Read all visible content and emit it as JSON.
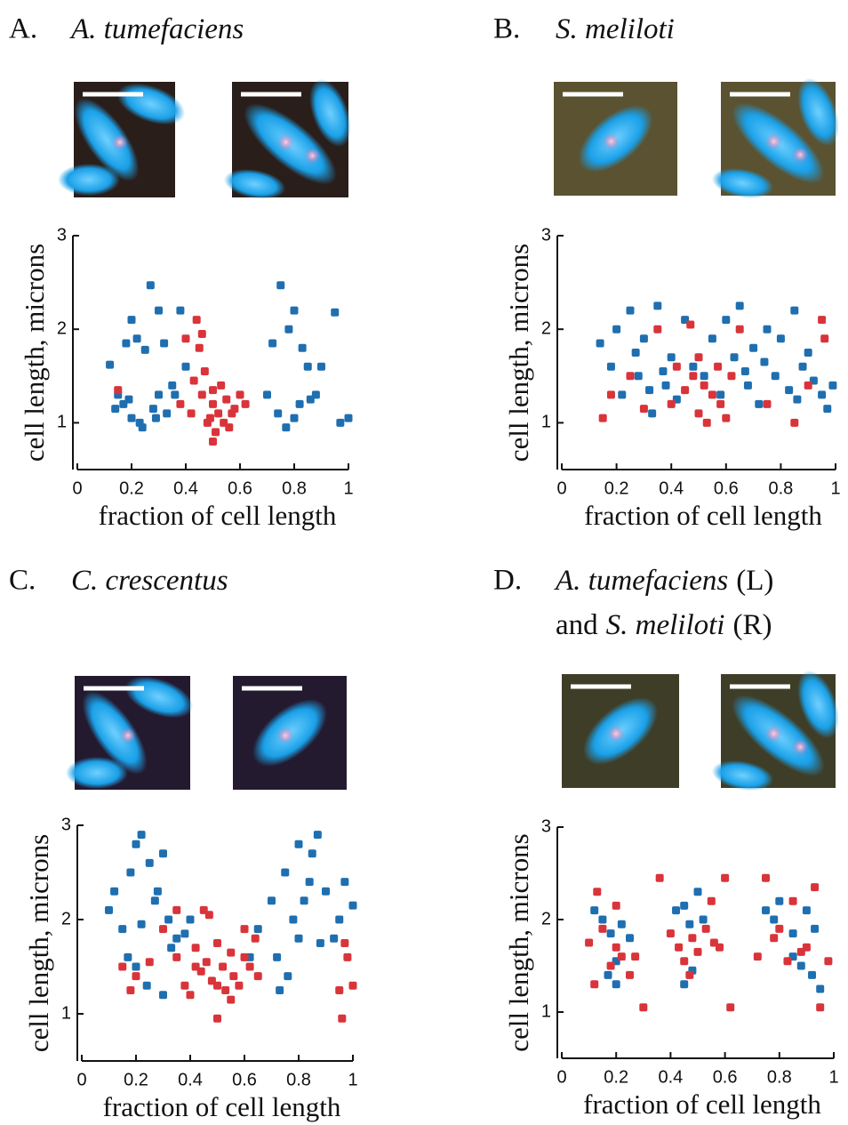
{
  "chart_data": [
    {
      "type": "scatter",
      "panel": "A.",
      "title": [
        [
          {
            "text": "A. tumefaciens",
            "italic": true
          }
        ]
      ],
      "x_label": "fraction of cell length",
      "y_label": "cell length, microns",
      "xlim": [
        0,
        1
      ],
      "ylim": [
        0.5,
        3
      ],
      "xticks": [
        0,
        0.2,
        0.4,
        0.6,
        0.8,
        1
      ],
      "yticks": [
        1,
        2,
        3
      ],
      "series": [
        {
          "color": "#1f6fb0",
          "x": [
            0.12,
            0.15,
            0.18,
            0.2,
            0.22,
            0.25,
            0.27,
            0.3,
            0.32,
            0.35,
            0.17,
            0.2,
            0.23,
            0.28,
            0.3,
            0.33,
            0.38,
            0.14,
            0.19,
            0.24,
            0.29,
            0.36,
            0.4,
            0.7,
            0.72,
            0.75,
            0.78,
            0.8,
            0.83,
            0.85,
            0.88,
            0.74,
            0.77,
            0.8,
            0.82,
            0.86,
            0.9,
            0.95,
            0.97,
            1
          ],
          "values": [
            1.62,
            1.3,
            1.85,
            2.1,
            1.9,
            1.78,
            2.47,
            2.2,
            1.85,
            1.4,
            1.2,
            1.05,
            1,
            1.15,
            1.3,
            1.1,
            2.2,
            1.15,
            1.25,
            0.95,
            1.05,
            1.3,
            1.6,
            1.3,
            1.85,
            2.47,
            2,
            2.2,
            1.8,
            1.6,
            1.3,
            1.1,
            0.95,
            1.05,
            1.2,
            1.25,
            1.6,
            2.18,
            1,
            1.05
          ]
        },
        {
          "color": "#d9343a",
          "x": [
            0.15,
            0.38,
            0.42,
            0.44,
            0.45,
            0.46,
            0.48,
            0.5,
            0.5,
            0.52,
            0.53,
            0.55,
            0.56,
            0.58,
            0.6,
            0.47,
            0.49,
            0.51,
            0.54,
            0.43,
            0.57,
            0.62,
            0.46,
            0.5,
            0.4
          ],
          "values": [
            1.35,
            1.2,
            1.1,
            2.1,
            1.8,
            1.3,
            1,
            1.2,
            0.8,
            1.1,
            1.4,
            1.25,
            0.95,
            1.15,
            1.3,
            1.55,
            1.05,
            0.9,
            1,
            1.45,
            1.1,
            1.2,
            1.95,
            1.35,
            1.9
          ]
        }
      ]
    },
    {
      "type": "scatter",
      "panel": "B.",
      "title": [
        [
          {
            "text": "S. meliloti",
            "italic": true
          }
        ]
      ],
      "x_label": "fraction of cell length",
      "y_label": "cell length, microns",
      "xlim": [
        0,
        1
      ],
      "ylim": [
        0.5,
        3
      ],
      "xticks": [
        0,
        0.2,
        0.4,
        0.6,
        0.8,
        1
      ],
      "yticks": [
        1,
        2,
        3
      ],
      "series": [
        {
          "color": "#1f6fb0",
          "x": [
            0.14,
            0.18,
            0.2,
            0.22,
            0.25,
            0.28,
            0.3,
            0.33,
            0.35,
            0.38,
            0.4,
            0.42,
            0.45,
            0.48,
            0.52,
            0.55,
            0.58,
            0.6,
            0.63,
            0.65,
            0.68,
            0.7,
            0.72,
            0.75,
            0.78,
            0.8,
            0.83,
            0.85,
            0.88,
            0.9,
            0.92,
            0.95,
            0.97,
            0.99,
            0.27,
            0.32,
            0.37,
            0.67,
            0.74,
            0.86
          ],
          "values": [
            1.85,
            1.6,
            2,
            1.3,
            2.2,
            1.5,
            1.9,
            1.1,
            2.25,
            1.4,
            1.7,
            1.25,
            2.1,
            1.6,
            1.5,
            1.9,
            1.3,
            2.1,
            1.7,
            2.25,
            1.4,
            1.8,
            1.2,
            2,
            1.5,
            1.9,
            1.35,
            2.2,
            1.6,
            1.75,
            1.45,
            1.3,
            1.15,
            1.4,
            1.75,
            1.35,
            1.55,
            1.55,
            1.65,
            1.25
          ]
        },
        {
          "color": "#d9343a",
          "x": [
            0.15,
            0.18,
            0.25,
            0.35,
            0.4,
            0.42,
            0.45,
            0.48,
            0.5,
            0.52,
            0.55,
            0.58,
            0.6,
            0.62,
            0.5,
            0.53,
            0.57,
            0.47,
            0.85,
            0.9,
            0.95,
            0.96,
            0.65,
            0.75,
            0.3
          ],
          "values": [
            1.05,
            1.3,
            1.5,
            2,
            1.2,
            1.6,
            1.35,
            1.5,
            1.1,
            1.4,
            1.3,
            1.2,
            1.05,
            1.5,
            1.7,
            1,
            1.6,
            2.05,
            1,
            1.4,
            2.1,
            1.9,
            2,
            1.2,
            1.15
          ]
        }
      ]
    },
    {
      "type": "scatter",
      "panel": "C.",
      "title": [
        [
          {
            "text": "C. crescentus",
            "italic": true
          }
        ]
      ],
      "x_label": "fraction of cell length",
      "y_label": "cell length, microns",
      "xlim": [
        0,
        1
      ],
      "ylim": [
        0.5,
        3
      ],
      "xticks": [
        0,
        0.2,
        0.4,
        0.6,
        0.8,
        1
      ],
      "yticks": [
        1,
        2,
        3
      ],
      "series": [
        {
          "color": "#1f6fb0",
          "x": [
            0.1,
            0.12,
            0.15,
            0.18,
            0.2,
            0.22,
            0.25,
            0.27,
            0.3,
            0.32,
            0.35,
            0.17,
            0.22,
            0.28,
            0.33,
            0.38,
            0.24,
            0.3,
            0.4,
            0.2,
            0.7,
            0.72,
            0.75,
            0.78,
            0.8,
            0.82,
            0.85,
            0.87,
            0.9,
            0.93,
            0.95,
            0.97,
            1,
            0.76,
            0.8,
            0.84,
            0.88,
            0.73,
            0.62,
            0.65
          ],
          "values": [
            2.1,
            2.3,
            1.9,
            2.5,
            2.8,
            2.9,
            2.6,
            2.2,
            2.7,
            2,
            1.8,
            1.6,
            1.95,
            2.3,
            1.7,
            1.85,
            1.3,
            1.2,
            2,
            1.5,
            2.2,
            1.6,
            2.5,
            2,
            2.8,
            2.2,
            2.7,
            2.9,
            2.3,
            1.8,
            2,
            2.4,
            2.15,
            1.4,
            1.8,
            2.4,
            1.75,
            1.25,
            1.6,
            1.9
          ]
        },
        {
          "color": "#d9343a",
          "x": [
            0.15,
            0.18,
            0.2,
            0.3,
            0.35,
            0.38,
            0.4,
            0.42,
            0.44,
            0.45,
            0.46,
            0.48,
            0.5,
            0.5,
            0.52,
            0.53,
            0.55,
            0.56,
            0.58,
            0.6,
            0.62,
            0.64,
            0.42,
            0.47,
            0.5,
            0.55,
            0.6,
            0.97,
            0.96,
            1,
            0.95,
            0.98,
            0.35,
            0.65,
            0.25
          ],
          "values": [
            1.5,
            1.25,
            1.4,
            1.9,
            1.6,
            1.3,
            1.2,
            1.7,
            1.45,
            2.1,
            1.55,
            1.35,
            1.75,
            0.95,
            1.5,
            1.25,
            1.65,
            1.4,
            1.3,
            1.6,
            1.5,
            1.8,
            1.5,
            2.05,
            1.3,
            1.15,
            1.9,
            1.75,
            0.95,
            1.3,
            1.25,
            1.6,
            2.1,
            1.4,
            1.55
          ]
        }
      ]
    },
    {
      "type": "scatter",
      "panel": "D.",
      "title": [
        [
          {
            "text": "A. tumefaciens",
            "italic": true
          },
          {
            "text": "(L)",
            "italic": false
          }
        ],
        [
          {
            "text": "and",
            "italic": false
          },
          {
            "text": "S. meliloti",
            "italic": true
          },
          {
            "text": "(R)",
            "italic": false
          }
        ]
      ],
      "x_label": "fraction of cell length",
      "y_label": "cell length, microns",
      "xlim": [
        0,
        1
      ],
      "ylim": [
        0.5,
        3
      ],
      "xticks": [
        0,
        0.2,
        0.4,
        0.6,
        0.8,
        1
      ],
      "yticks": [
        1,
        2,
        3
      ],
      "series": [
        {
          "color": "#1f6fb0",
          "x": [
            0.12,
            0.15,
            0.18,
            0.2,
            0.22,
            0.25,
            0.17,
            0.2,
            0.42,
            0.45,
            0.47,
            0.5,
            0.52,
            0.45,
            0.48,
            0.75,
            0.78,
            0.8,
            0.85,
            0.88,
            0.9,
            0.93,
            0.95,
            0.85,
            0.92
          ],
          "values": [
            2.1,
            2,
            1.85,
            1.3,
            1.95,
            1.8,
            1.4,
            1.55,
            2.1,
            2.15,
            1.95,
            2.3,
            2,
            1.3,
            1.45,
            2.1,
            2,
            2.2,
            1.85,
            1.5,
            2.1,
            1.9,
            1.25,
            1.6,
            1.4
          ]
        },
        {
          "color": "#d9343a",
          "x": [
            0.1,
            0.13,
            0.15,
            0.18,
            0.2,
            0.22,
            0.25,
            0.27,
            0.3,
            0.36,
            0.12,
            0.2,
            0.4,
            0.43,
            0.45,
            0.48,
            0.5,
            0.53,
            0.55,
            0.58,
            0.6,
            0.62,
            0.47,
            0.56,
            0.72,
            0.75,
            0.78,
            0.8,
            0.83,
            0.85,
            0.88,
            0.9,
            0.93,
            0.95,
            0.98
          ],
          "values": [
            1.75,
            2.3,
            1.9,
            1.5,
            1.7,
            1.6,
            1.4,
            1.6,
            1.05,
            2.45,
            1.3,
            2.15,
            1.85,
            1.7,
            1.55,
            1.8,
            1.65,
            1.9,
            2.2,
            1.7,
            2.45,
            1.05,
            1.4,
            1.75,
            1.6,
            2.45,
            1.8,
            1.9,
            1.55,
            2.2,
            1.65,
            1.7,
            2.35,
            1.05,
            1.55
          ]
        }
      ]
    }
  ]
}
